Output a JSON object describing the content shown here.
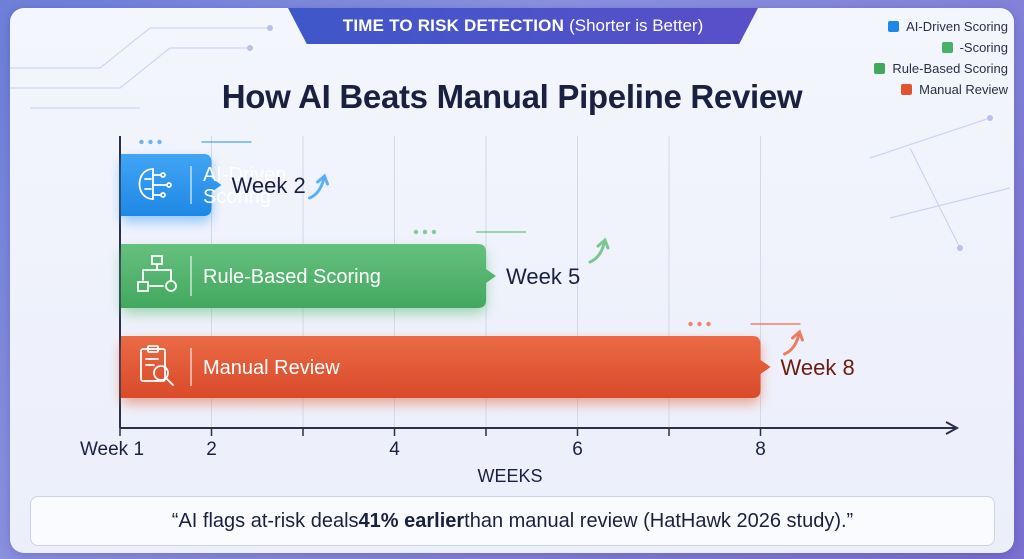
{
  "header": {
    "bold_text": "TIME TO RISK DETECTION",
    "normal_text": "(Shorter is Better)"
  },
  "legend": [
    {
      "label": "AI-Driven Scoring",
      "color": "#1e88e5"
    },
    {
      "label": "-Scoring",
      "color": "#4caf6a"
    },
    {
      "label": "Rule-Based Scoring",
      "color": "#43a85f"
    },
    {
      "label": "Manual Review",
      "color": "#e0552f"
    }
  ],
  "chart_data": {
    "type": "bar",
    "orientation": "horizontal",
    "title": "How AI Beats Manual Pipeline Review",
    "xlabel": "WEEKS",
    "xlim": [
      1,
      9
    ],
    "x_tick_labels": [
      {
        "value": 1,
        "label": "Week 1"
      },
      {
        "value": 2,
        "label": "2"
      },
      {
        "value": 4,
        "label": "4"
      },
      {
        "value": 6,
        "label": "6"
      },
      {
        "value": 8,
        "label": "8"
      }
    ],
    "minor_ticks": [
      3,
      5,
      7
    ],
    "grid": true,
    "series": [
      {
        "category": "AI-Driven Scoring",
        "category_lines": [
          "AI-Driven",
          "Scoring"
        ],
        "value": 2,
        "value_label": "Week 2",
        "color": "#1e88e5",
        "color_light": "#42a5f5",
        "icon": "brain-icon"
      },
      {
        "category": "Rule-Based Scoring",
        "category_lines": [
          "Rule-Based Scoring"
        ],
        "value": 5,
        "value_label": "Week 5",
        "color": "#43a85f",
        "color_light": "#66c07f",
        "icon": "flowchart-icon"
      },
      {
        "category": "Manual Review",
        "category_lines": [
          "Manual Review"
        ],
        "value": 8,
        "value_label": "Week 8",
        "color": "#d94a2b",
        "color_light": "#ea6a45",
        "icon": "clipboard-search-icon"
      }
    ]
  },
  "footer": {
    "quote_prefix": "“AI flags at-risk deals ",
    "quote_bold": "41% earlier",
    "quote_suffix": " than manual review (HatHawk 2026 study).”"
  }
}
